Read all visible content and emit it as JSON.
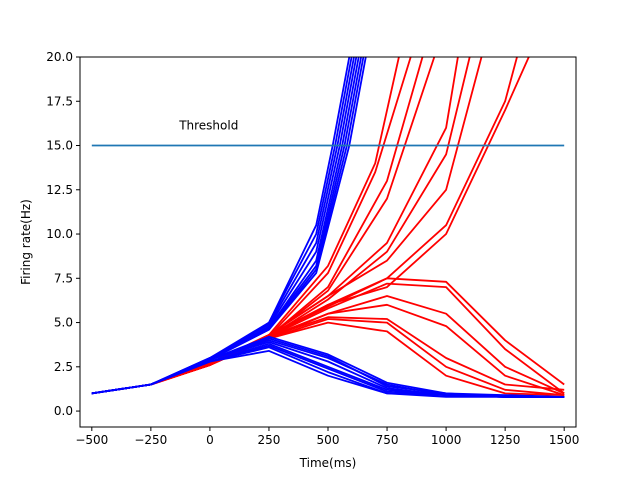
{
  "chart_data": {
    "type": "line",
    "title": "",
    "xlabel": "Time(ms)",
    "ylabel": "Firing rate(Hz)",
    "xlim": [
      -550,
      1550
    ],
    "ylim": [
      -0.9,
      20.0
    ],
    "xticks": [
      -500,
      -250,
      0,
      250,
      500,
      750,
      1000,
      1250,
      1500
    ],
    "xtick_labels": [
      "−500",
      "−250",
      "0",
      "250",
      "500",
      "750",
      "1000",
      "1250",
      "1500"
    ],
    "yticks": [
      0.0,
      2.5,
      5.0,
      7.5,
      10.0,
      12.5,
      15.0,
      17.5,
      20.0
    ],
    "ytick_labels": [
      "0.0",
      "2.5",
      "5.0",
      "7.5",
      "10.0",
      "12.5",
      "15.0",
      "17.5",
      "20.0"
    ],
    "grid": false,
    "annotation": {
      "text": "Threshold",
      "x": -130,
      "y": 15.9
    },
    "threshold": {
      "x": [
        -500,
        1500
      ],
      "y": [
        15.0,
        15.0
      ],
      "color": "#1f77b4"
    },
    "series_colors": {
      "red": "#ff0000",
      "blue": "#0000ff"
    },
    "series": [
      {
        "color": "red",
        "x": [
          -500,
          -250,
          0,
          250,
          500,
          700,
          800
        ],
        "y": [
          1.0,
          1.5,
          2.7,
          4.3,
          8.2,
          14.0,
          20.0
        ]
      },
      {
        "color": "red",
        "x": [
          -500,
          -250,
          0,
          250,
          500,
          700,
          850
        ],
        "y": [
          1.0,
          1.5,
          2.6,
          4.2,
          7.8,
          13.5,
          20.0
        ]
      },
      {
        "color": "red",
        "x": [
          -500,
          -250,
          0,
          250,
          500,
          750,
          900
        ],
        "y": [
          1.0,
          1.5,
          2.7,
          4.2,
          7.0,
          13.0,
          20.0
        ]
      },
      {
        "color": "red",
        "x": [
          -500,
          -250,
          0,
          250,
          500,
          750,
          950
        ],
        "y": [
          1.0,
          1.5,
          2.6,
          4.2,
          6.8,
          12.0,
          20.0
        ]
      },
      {
        "color": "red",
        "x": [
          -500,
          -250,
          0,
          250,
          500,
          750,
          1000,
          1050
        ],
        "y": [
          1.0,
          1.5,
          2.7,
          4.3,
          6.5,
          9.5,
          16.0,
          20.0
        ]
      },
      {
        "color": "red",
        "x": [
          -500,
          -250,
          0,
          250,
          500,
          750,
          1000,
          1100
        ],
        "y": [
          1.0,
          1.5,
          2.6,
          4.2,
          6.3,
          9.0,
          14.5,
          20.0
        ]
      },
      {
        "color": "red",
        "x": [
          -500,
          -250,
          0,
          250,
          500,
          750,
          1000,
          1150
        ],
        "y": [
          1.0,
          1.5,
          2.7,
          4.3,
          6.5,
          8.5,
          12.5,
          20.0
        ]
      },
      {
        "color": "red",
        "x": [
          -500,
          -250,
          0,
          250,
          500,
          750,
          1000,
          1250,
          1300
        ],
        "y": [
          1.0,
          1.5,
          2.6,
          4.2,
          6.0,
          7.5,
          10.5,
          17.5,
          20.0
        ]
      },
      {
        "color": "red",
        "x": [
          -500,
          -250,
          0,
          250,
          500,
          750,
          1000,
          1250,
          1350
        ],
        "y": [
          1.0,
          1.5,
          2.7,
          4.3,
          6.0,
          7.0,
          10.0,
          17.0,
          20.0
        ]
      },
      {
        "color": "red",
        "x": [
          -500,
          -250,
          0,
          250,
          500,
          750,
          1000,
          1250,
          1500
        ],
        "y": [
          1.0,
          1.5,
          2.6,
          4.2,
          5.8,
          7.2,
          7.0,
          3.5,
          1.0
        ]
      },
      {
        "color": "red",
        "x": [
          -500,
          -250,
          0,
          250,
          500,
          750,
          1000,
          1250,
          1500
        ],
        "y": [
          1.0,
          1.5,
          2.7,
          4.3,
          5.9,
          7.5,
          7.3,
          4.0,
          1.5
        ]
      },
      {
        "color": "red",
        "x": [
          -500,
          -250,
          0,
          250,
          500,
          750,
          1000,
          1250,
          1500
        ],
        "y": [
          1.0,
          1.5,
          2.6,
          4.1,
          5.5,
          6.5,
          5.5,
          2.5,
          1.0
        ]
      },
      {
        "color": "red",
        "x": [
          -500,
          -250,
          0,
          250,
          500,
          750,
          1000,
          1250,
          1500
        ],
        "y": [
          1.0,
          1.5,
          2.7,
          4.2,
          5.5,
          6.0,
          4.8,
          2.0,
          0.9
        ]
      },
      {
        "color": "red",
        "x": [
          -500,
          -250,
          0,
          250,
          500,
          750,
          1000,
          1250,
          1500
        ],
        "y": [
          1.0,
          1.5,
          2.6,
          4.1,
          5.2,
          5.0,
          2.5,
          1.2,
          0.9
        ]
      },
      {
        "color": "red",
        "x": [
          -500,
          -250,
          0,
          250,
          500,
          750,
          1000,
          1250,
          1500
        ],
        "y": [
          1.0,
          1.5,
          2.7,
          4.2,
          5.3,
          5.2,
          3.0,
          1.5,
          1.2
        ]
      },
      {
        "color": "red",
        "x": [
          -500,
          -250,
          0,
          250,
          500,
          750,
          1000,
          1250,
          1500
        ],
        "y": [
          1.0,
          1.5,
          2.6,
          4.1,
          5.0,
          4.5,
          2.0,
          1.0,
          0.9
        ]
      },
      {
        "color": "blue",
        "x": [
          -500,
          -250,
          0,
          250,
          450,
          530,
          600
        ],
        "y": [
          1.0,
          1.5,
          2.9,
          5.0,
          10.0,
          15.0,
          20.0
        ]
      },
      {
        "color": "blue",
        "x": [
          -500,
          -250,
          0,
          250,
          450,
          540,
          610
        ],
        "y": [
          1.0,
          1.5,
          3.0,
          4.9,
          9.5,
          15.0,
          20.0
        ]
      },
      {
        "color": "blue",
        "x": [
          -500,
          -250,
          0,
          250,
          450,
          550,
          620
        ],
        "y": [
          1.0,
          1.5,
          2.9,
          4.8,
          9.0,
          15.0,
          20.0
        ]
      },
      {
        "color": "blue",
        "x": [
          -500,
          -250,
          0,
          250,
          450,
          560,
          630
        ],
        "y": [
          1.0,
          1.5,
          2.9,
          4.7,
          8.5,
          15.0,
          20.0
        ]
      },
      {
        "color": "blue",
        "x": [
          -500,
          -250,
          0,
          250,
          450,
          570,
          640
        ],
        "y": [
          1.0,
          1.5,
          3.0,
          4.7,
          8.2,
          15.0,
          20.0
        ]
      },
      {
        "color": "blue",
        "x": [
          -500,
          -250,
          0,
          250,
          450,
          580,
          650
        ],
        "y": [
          1.0,
          1.5,
          2.9,
          4.6,
          8.0,
          15.0,
          20.0
        ]
      },
      {
        "color": "blue",
        "x": [
          -500,
          -250,
          0,
          250,
          450,
          520,
          590
        ],
        "y": [
          1.0,
          1.5,
          3.0,
          5.0,
          10.5,
          15.0,
          20.0
        ]
      },
      {
        "color": "blue",
        "x": [
          -500,
          -250,
          0,
          250,
          450,
          590,
          660
        ],
        "y": [
          1.0,
          1.5,
          2.9,
          4.6,
          7.8,
          15.0,
          20.0
        ]
      },
      {
        "color": "blue",
        "x": [
          -500,
          -250,
          0,
          250,
          500,
          750,
          1000,
          1250,
          1500
        ],
        "y": [
          1.0,
          1.5,
          2.8,
          3.8,
          2.5,
          1.2,
          0.9,
          0.8,
          0.8
        ]
      },
      {
        "color": "blue",
        "x": [
          -500,
          -250,
          0,
          250,
          500,
          750,
          1000,
          1250,
          1500
        ],
        "y": [
          1.0,
          1.5,
          2.9,
          4.0,
          3.0,
          1.5,
          0.9,
          0.8,
          0.8
        ]
      },
      {
        "color": "blue",
        "x": [
          -500,
          -250,
          0,
          250,
          500,
          750,
          1000,
          1250,
          1500
        ],
        "y": [
          1.0,
          1.5,
          2.8,
          3.6,
          2.2,
          1.0,
          0.9,
          0.8,
          0.8
        ]
      },
      {
        "color": "blue",
        "x": [
          -500,
          -250,
          0,
          250,
          500,
          750,
          1000,
          1250,
          1500
        ],
        "y": [
          1.0,
          1.5,
          2.9,
          4.2,
          3.2,
          1.6,
          1.0,
          0.9,
          0.8
        ]
      },
      {
        "color": "blue",
        "x": [
          -500,
          -250,
          0,
          250,
          500,
          750,
          1000,
          1250,
          1500
        ],
        "y": [
          1.0,
          1.5,
          2.8,
          3.4,
          2.0,
          1.0,
          0.8,
          0.8,
          0.8
        ]
      },
      {
        "color": "blue",
        "x": [
          -500,
          -250,
          0,
          250,
          500,
          750,
          1000,
          1250,
          1500
        ],
        "y": [
          1.0,
          1.5,
          2.9,
          3.9,
          2.8,
          1.3,
          0.9,
          0.8,
          0.8
        ]
      },
      {
        "color": "blue",
        "x": [
          -500,
          -250,
          0,
          250,
          500,
          750,
          1000,
          1250,
          1500
        ],
        "y": [
          1.0,
          1.5,
          2.8,
          3.7,
          2.4,
          1.1,
          0.9,
          0.8,
          0.8
        ]
      },
      {
        "color": "blue",
        "x": [
          -500,
          -250,
          0,
          250,
          500,
          750,
          1000,
          1250,
          1500
        ],
        "y": [
          1.0,
          1.5,
          2.9,
          4.1,
          3.1,
          1.4,
          1.0,
          0.8,
          0.8
        ]
      }
    ]
  }
}
